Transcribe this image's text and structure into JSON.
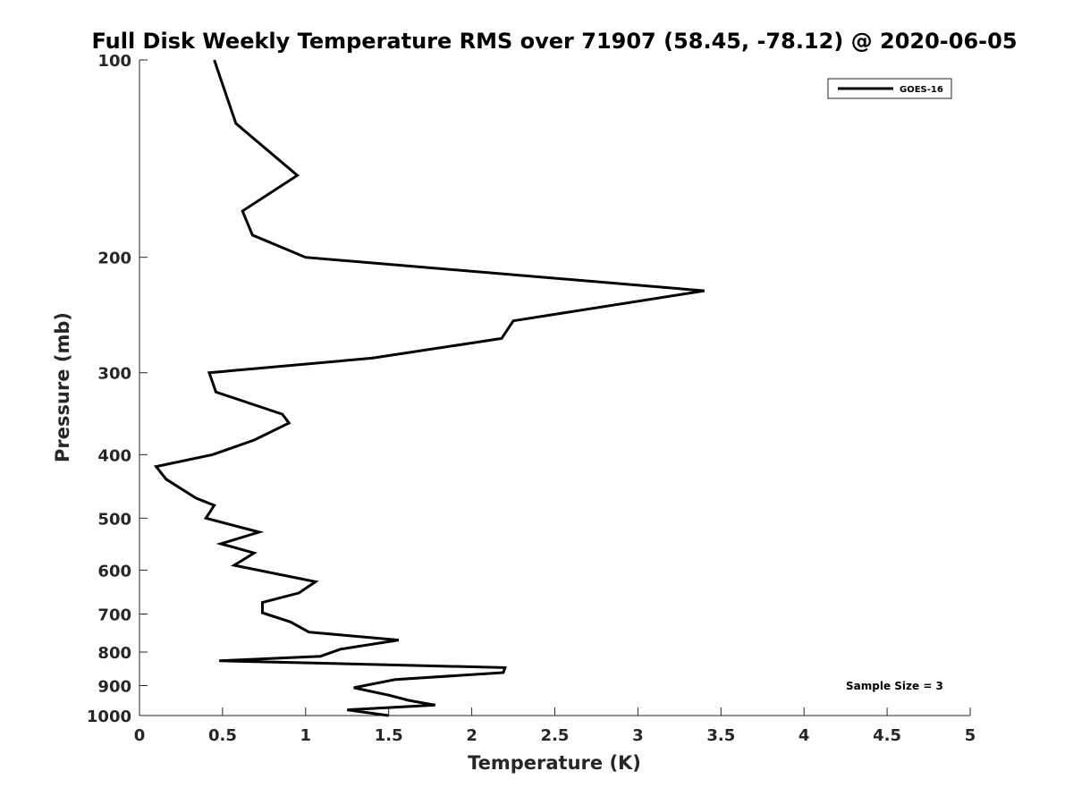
{
  "chart_data": {
    "type": "line",
    "title": "Full Disk Weekly Temperature RMS over 71907 (58.45, -78.12) @ 2020-06-05",
    "xlabel": "Temperature (K)",
    "ylabel": "Pressure (mb)",
    "xlim": [
      0,
      5
    ],
    "ylim": [
      100,
      1000
    ],
    "yscale": "log",
    "y_reversed": true,
    "x_ticks": [
      "0",
      "0.5",
      "1",
      "1.5",
      "2",
      "2.5",
      "3",
      "3.5",
      "4",
      "4.5",
      "5"
    ],
    "y_ticks": [
      "100",
      "200",
      "300",
      "400",
      "500",
      "600",
      "700",
      "800",
      "900",
      "1000"
    ],
    "grid": false,
    "legend_position": "top-right",
    "annotation": "Sample Size = 3",
    "series": [
      {
        "name": "GOES-16",
        "color": "#000000",
        "points": [
          [
            0.45,
            100
          ],
          [
            0.58,
            125
          ],
          [
            0.95,
            150
          ],
          [
            0.62,
            170
          ],
          [
            0.68,
            185
          ],
          [
            1.0,
            200
          ],
          [
            3.4,
            225
          ],
          [
            2.25,
            250
          ],
          [
            2.18,
            266
          ],
          [
            1.4,
            285
          ],
          [
            0.42,
            300
          ],
          [
            0.46,
            321
          ],
          [
            0.86,
            347
          ],
          [
            0.9,
            358
          ],
          [
            0.69,
            380
          ],
          [
            0.44,
            400
          ],
          [
            0.1,
            417
          ],
          [
            0.16,
            436
          ],
          [
            0.34,
            466
          ],
          [
            0.45,
            478
          ],
          [
            0.4,
            500
          ],
          [
            0.72,
            525
          ],
          [
            0.49,
            547
          ],
          [
            0.69,
            565
          ],
          [
            0.57,
            590
          ],
          [
            1.06,
            625
          ],
          [
            0.96,
            650
          ],
          [
            0.74,
            672
          ],
          [
            0.74,
            697
          ],
          [
            0.91,
            720
          ],
          [
            1.02,
            746
          ],
          [
            1.56,
            767
          ],
          [
            1.21,
            792
          ],
          [
            1.09,
            812
          ],
          [
            0.48,
            825
          ],
          [
            2.2,
            845
          ],
          [
            2.19,
            860
          ],
          [
            1.54,
            881
          ],
          [
            1.29,
            907
          ],
          [
            1.5,
            931
          ],
          [
            1.62,
            948
          ],
          [
            1.78,
            964
          ],
          [
            1.25,
            980
          ],
          [
            1.5,
            1000
          ]
        ]
      }
    ]
  }
}
